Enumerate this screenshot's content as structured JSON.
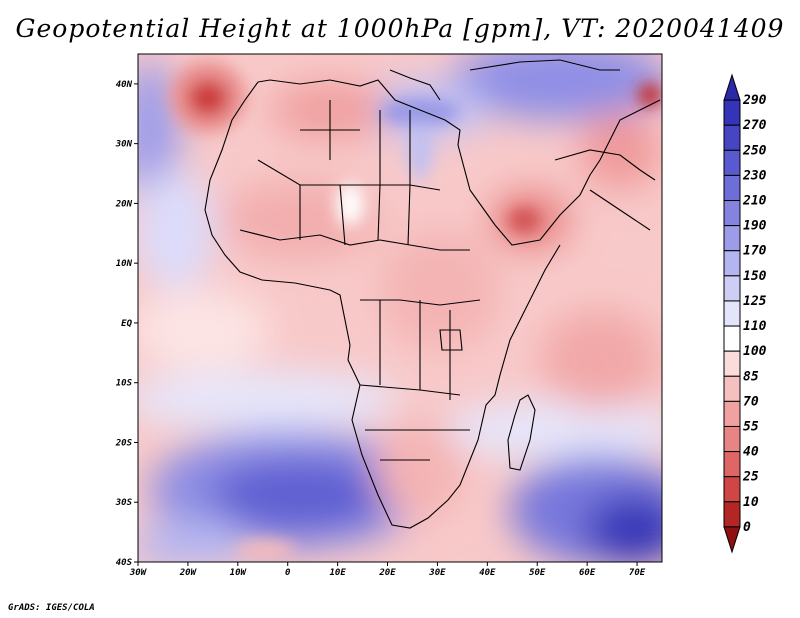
{
  "title": "Geopotential Height at 1000hPa [gpm], VT: 2020041409",
  "footer": "GrADS: IGES/COLA",
  "map": {
    "lon_range": [
      -30,
      75
    ],
    "lat_range": [
      -40,
      45
    ],
    "lon_ticks": [
      {
        "lon": -30,
        "label": "30W"
      },
      {
        "lon": -20,
        "label": "20W"
      },
      {
        "lon": -10,
        "label": "10W"
      },
      {
        "lon": 0,
        "label": "0"
      },
      {
        "lon": 10,
        "label": "10E"
      },
      {
        "lon": 20,
        "label": "20E"
      },
      {
        "lon": 30,
        "label": "30E"
      },
      {
        "lon": 40,
        "label": "40E"
      },
      {
        "lon": 50,
        "label": "50E"
      },
      {
        "lon": 60,
        "label": "60E"
      },
      {
        "lon": 70,
        "label": "70E"
      }
    ],
    "lat_ticks": [
      {
        "lat": 40,
        "label": "40N"
      },
      {
        "lat": 30,
        "label": "30N"
      },
      {
        "lat": 20,
        "label": "20N"
      },
      {
        "lat": 10,
        "label": "10N"
      },
      {
        "lat": 0,
        "label": "EQ"
      },
      {
        "lat": -10,
        "label": "10S"
      },
      {
        "lat": -20,
        "label": "20S"
      },
      {
        "lat": -30,
        "label": "30S"
      },
      {
        "lat": -40,
        "label": "40S"
      }
    ]
  },
  "colorbar": {
    "labels": [
      "290",
      "270",
      "250",
      "230",
      "210",
      "190",
      "170",
      "150",
      "125",
      "110",
      "100",
      "85",
      "70",
      "55",
      "40",
      "25",
      "10",
      "0"
    ],
    "colors": [
      "#2a2aa8",
      "#3434b8",
      "#4646c4",
      "#5a5ad0",
      "#6e6ed8",
      "#8484e0",
      "#9c9ce8",
      "#b4b4f0",
      "#cdcdf6",
      "#e4e4fb",
      "#ffffff",
      "#fbdcdc",
      "#f6c0c0",
      "#f0a2a2",
      "#e88484",
      "#de6666",
      "#d04646",
      "#b42626",
      "#8e1010"
    ]
  }
}
